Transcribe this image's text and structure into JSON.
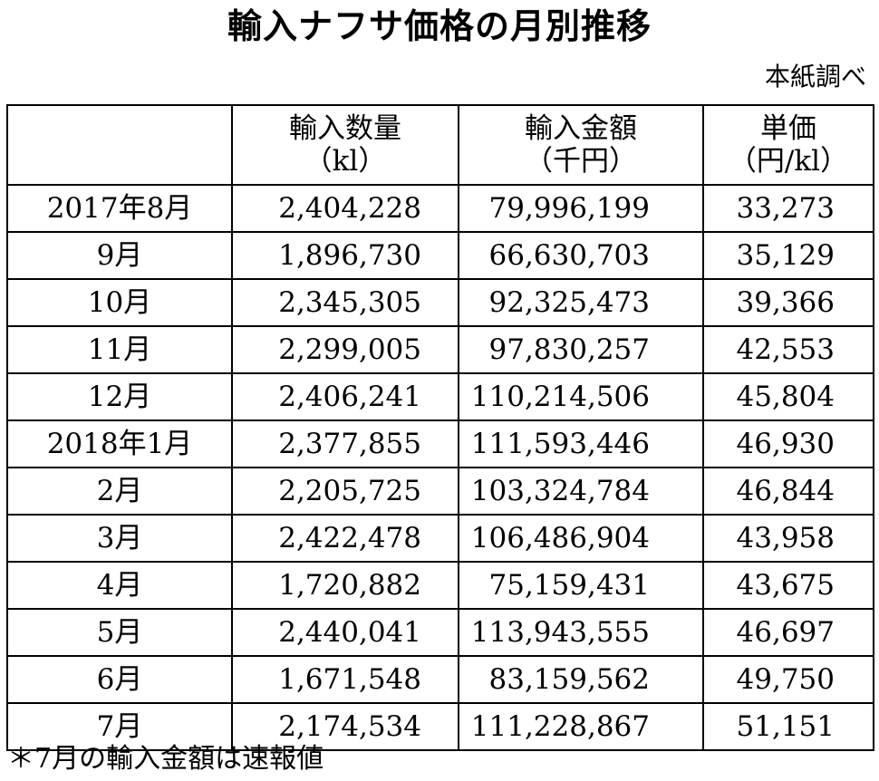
{
  "title": "輸入ナフサ価格の月別推移",
  "source": "本紙調べ",
  "table": {
    "headers": [
      {
        "line1": "",
        "line2": ""
      },
      {
        "line1": "輸入数量",
        "line2": "（kl）"
      },
      {
        "line1": "輸入金額",
        "line2": "（千円）"
      },
      {
        "line1": "単価",
        "line2": "（円/kl）"
      }
    ],
    "rows": [
      {
        "month": "2017年8月",
        "volume": "2,404,228",
        "amount": "79,996,199",
        "price": "33,273"
      },
      {
        "month": "9月",
        "volume": "1,896,730",
        "amount": "66,630,703",
        "price": "35,129"
      },
      {
        "month": "10月",
        "volume": "2,345,305",
        "amount": "92,325,473",
        "price": "39,366"
      },
      {
        "month": "11月",
        "volume": "2,299,005",
        "amount": "97,830,257",
        "price": "42,553"
      },
      {
        "month": "12月",
        "volume": "2,406,241",
        "amount": "110,214,506",
        "price": "45,804"
      },
      {
        "month": "2018年1月",
        "volume": "2,377,855",
        "amount": "111,593,446",
        "price": "46,930"
      },
      {
        "month": "2月",
        "volume": "2,205,725",
        "amount": "103,324,784",
        "price": "46,844"
      },
      {
        "month": "3月",
        "volume": "2,422,478",
        "amount": "106,486,904",
        "price": "43,958"
      },
      {
        "month": "4月",
        "volume": "1,720,882",
        "amount": "75,159,431",
        "price": "43,675"
      },
      {
        "month": "5月",
        "volume": "2,440,041",
        "amount": "113,943,555",
        "price": "46,697"
      },
      {
        "month": "6月",
        "volume": "1,671,548",
        "amount": "83,159,562",
        "price": "49,750"
      },
      {
        "month": "7月",
        "volume": "2,174,534",
        "amount": "111,228,867",
        "price": "51,151"
      }
    ]
  },
  "note": "＊7月の輸入金額は速報値"
}
